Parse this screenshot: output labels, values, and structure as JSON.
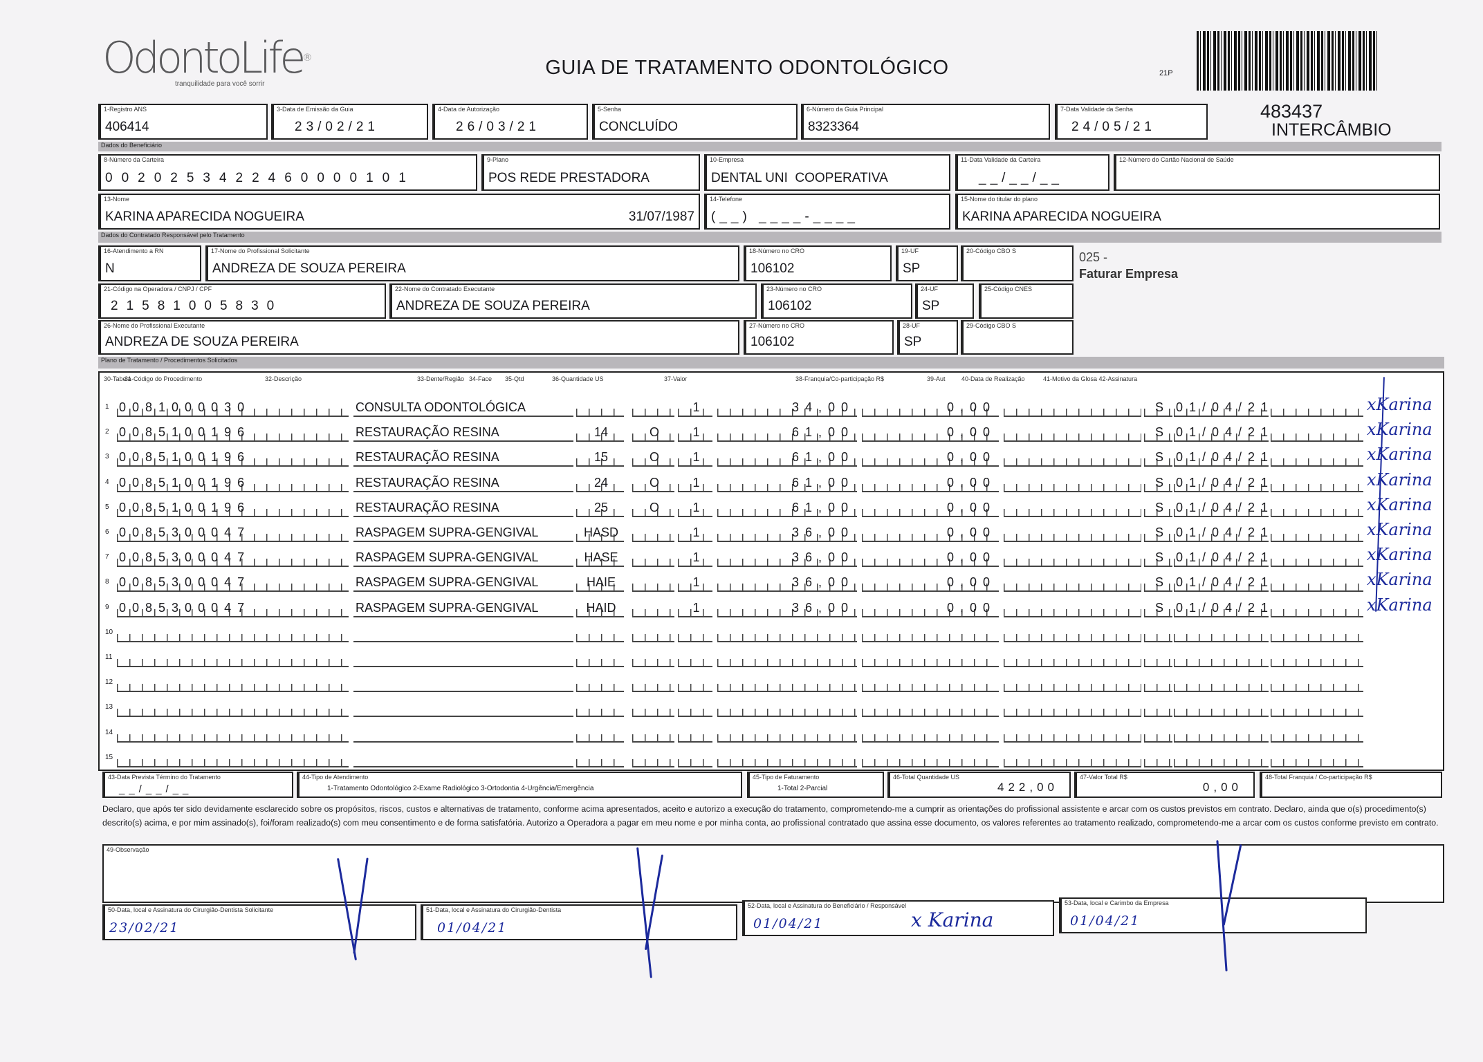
{
  "header": {
    "logo_text": "OdontoLife",
    "logo_tagline": "tranquilidade para você sorrir",
    "title": "GUIA DE TRATAMENTO ODONTOLÓGICO",
    "page_code": "21P",
    "guide_number": "483437",
    "guide_type": "INTERCÂMBIO"
  },
  "guide": {
    "registro_ans": {
      "label": "1-Registro ANS",
      "value": "406414"
    },
    "data_emissao": {
      "label": "3-Data de Emissão da Guia",
      "value": "23/02/21"
    },
    "data_autorizacao": {
      "label": "4-Data de Autorização",
      "value": "26/03/21"
    },
    "senha": {
      "label": "5-Senha",
      "value": "CONCLUÍDO"
    },
    "guia_principal": {
      "label": "6-Número da Guia Principal",
      "value": "8323364"
    },
    "validade_senha": {
      "label": "7-Data Validade da Senha",
      "value": "24/05/21"
    }
  },
  "sections": {
    "beneficiario": "Dados do Beneficiário",
    "contratado": "Dados do Contratado Responsável pelo Tratamento",
    "plano": "Plano de Tratamento / Procedimentos Solicitados"
  },
  "beneficiario": {
    "carteira": {
      "label": "8-Número da Carteira",
      "value": "0020253422460000101"
    },
    "plano": {
      "label": "9-Plano",
      "value": "POS REDE PRESTADORA"
    },
    "empresa": {
      "label": "10-Empresa",
      "value": "DENTAL UNI  COOPERATIVA"
    },
    "validade_carteira": {
      "label": "11-Data Validade da Carteira",
      "value": "__/__/__"
    },
    "cns": {
      "label": "12-Número do Cartão Nacional de Saúde",
      "value": ""
    },
    "nome": {
      "label": "13-Nome",
      "value": "KARINA APARECIDA NOGUEIRA"
    },
    "nascimento": "31/07/1987",
    "telefone": {
      "label": "14-Telefone",
      "value": "(__) ____-____"
    },
    "titular": {
      "label": "15-Nome do titular do plano",
      "value": "KARINA APARECIDA NOGUEIRA"
    }
  },
  "contratado": {
    "rn": {
      "label": "16-Atendimento a RN",
      "value": "N"
    },
    "solicitante": {
      "label": "17-Nome do Profissional Solicitante",
      "value": "ANDREZA DE SOUZA PEREIRA"
    },
    "cro_sol": {
      "label": "18-Número no CRO",
      "value": "106102"
    },
    "uf_sol": {
      "label": "19-UF",
      "value": "SP"
    },
    "cbo_sol": {
      "label": "20-Código CBO S",
      "value": ""
    },
    "codigo_operadora": {
      "label": "21-Código na Operadora / CNPJ / CPF",
      "value": "21581005830"
    },
    "contratado_exec": {
      "label": "22-Nome do Contratado Executante",
      "value": "ANDREZA DE SOUZA PEREIRA"
    },
    "cro_exec": {
      "label": "23-Número no CRO",
      "value": "106102"
    },
    "uf_exec": {
      "label": "24-UF",
      "value": "SP"
    },
    "cnes": {
      "label": "25-Código CNES",
      "value": ""
    },
    "prof_exec": {
      "label": "26-Nome do Profissional Executante",
      "value": "ANDREZA DE SOUZA PEREIRA"
    },
    "cro_prof": {
      "label": "27-Número no CRO",
      "value": "106102"
    },
    "uf_prof": {
      "label": "28-UF",
      "value": "SP"
    },
    "cbo_prof": {
      "label": "29-Código CBO S",
      "value": ""
    },
    "note_code": "025 -",
    "note_text": "Faturar Empresa"
  },
  "table": {
    "headers": [
      "30-Tabela",
      "31-Código do Procedimento",
      "32-Descrição",
      "33-Dente/Região",
      "34-Face",
      "35-Qtd",
      "36-Quantidade US",
      "37-Valor",
      "38-Franquia/Co-participação R$",
      "39-Aut",
      "40-Data de Realização",
      "41-Motivo da Glosa 42-Assinatura"
    ],
    "rows": [
      {
        "n": "1",
        "code": "0081000030",
        "desc": "CONSULTA ODONTOLÓGICA",
        "dente": "",
        "face": "",
        "qtd": "1",
        "us": "34,00",
        "valor": "0,00",
        "aut": "S",
        "data": "01/04/21",
        "sig": "xKarina"
      },
      {
        "n": "2",
        "code": "0085100196",
        "desc": "RESTAURAÇÃO RESINA",
        "dente": "14",
        "face": "O",
        "qtd": "1",
        "us": "61,00",
        "valor": "0,00",
        "aut": "S",
        "data": "01/04/21",
        "sig": "xKarina"
      },
      {
        "n": "3",
        "code": "0085100196",
        "desc": "RESTAURAÇÃO RESINA",
        "dente": "15",
        "face": "O",
        "qtd": "1",
        "us": "61,00",
        "valor": "0,00",
        "aut": "S",
        "data": "01/04/21",
        "sig": "xKarina"
      },
      {
        "n": "4",
        "code": "0085100196",
        "desc": "RESTAURAÇÃO RESINA",
        "dente": "24",
        "face": "O",
        "qtd": "1",
        "us": "61,00",
        "valor": "0,00",
        "aut": "S",
        "data": "01/04/21",
        "sig": "xKarina"
      },
      {
        "n": "5",
        "code": "0085100196",
        "desc": "RESTAURAÇÃO RESINA",
        "dente": "25",
        "face": "O",
        "qtd": "1",
        "us": "61,00",
        "valor": "0,00",
        "aut": "S",
        "data": "01/04/21",
        "sig": "xKarina"
      },
      {
        "n": "6",
        "code": "0085300047",
        "desc": "RASPAGEM SUPRA-GENGIVAL",
        "dente": "HASD",
        "face": "",
        "qtd": "1",
        "us": "36,00",
        "valor": "0,00",
        "aut": "S",
        "data": "01/04/21",
        "sig": "xKarina"
      },
      {
        "n": "7",
        "code": "0085300047",
        "desc": "RASPAGEM SUPRA-GENGIVAL",
        "dente": "HASE",
        "face": "",
        "qtd": "1",
        "us": "36,00",
        "valor": "0,00",
        "aut": "S",
        "data": "01/04/21",
        "sig": "xKarina"
      },
      {
        "n": "8",
        "code": "0085300047",
        "desc": "RASPAGEM SUPRA-GENGIVAL",
        "dente": "HAIE",
        "face": "",
        "qtd": "1",
        "us": "36,00",
        "valor": "0,00",
        "aut": "S",
        "data": "01/04/21",
        "sig": "xKarina"
      },
      {
        "n": "9",
        "code": "0085300047",
        "desc": "RASPAGEM SUPRA-GENGIVAL",
        "dente": "HAID",
        "face": "",
        "qtd": "1",
        "us": "36,00",
        "valor": "0,00",
        "aut": "S",
        "data": "01/04/21",
        "sig": "xKarina"
      },
      {
        "n": "10"
      },
      {
        "n": "11"
      },
      {
        "n": "12"
      },
      {
        "n": "13"
      },
      {
        "n": "14"
      },
      {
        "n": "15"
      }
    ]
  },
  "footer": {
    "previsao": {
      "label": "43-Data Prevista Término do Tratamento",
      "value": "__/__/__"
    },
    "tipo_atendimento": {
      "label": "44-Tipo de Atendimento",
      "options": "1-Tratamento Odontológico  2-Exame Radiológico  3-Ortodontia  4-Urgência/Emergência"
    },
    "tipo_faturamento": {
      "label": "45-Tipo de Faturamento",
      "options": "1-Total  2-Parcial"
    },
    "total_us": {
      "label": "46-Total Quantidade US",
      "value": "422,00"
    },
    "valor_total": {
      "label": "47-Valor Total R$",
      "value": "0,00"
    },
    "total_franquia": {
      "label": "48-Total Franquia / Co-participação R$",
      "value": ""
    },
    "declaration": "Declaro, que após ter sido devidamente esclarecido sobre os propósitos, riscos, custos e alternativas de tratamento, conforme acima apresentados, aceito e autorizo a execução do tratamento, comprometendo-me a cumprir as orientações do profissional assistente e arcar com os custos previstos em contrato. Declaro, ainda que o(s) procedimento(s) descrito(s) acima, e por mim assinado(s), foi/foram realizado(s) com meu consentimento e de forma satisfatória. Autorizo a Operadora a pagar em meu nome e por minha conta, ao profissional contratado que assina esse documento, os valores referentes ao tratamento realizado, comprometendo-me a arcar com os custos conforme previsto em contrato.",
    "observacao": {
      "label": "49-Observação",
      "value": ""
    },
    "sig_solicitante": {
      "label": "50-Data, local e Assinatura do Cirurgião-Dentista Solicitante",
      "value": "23/02/21"
    },
    "sig_dentista": {
      "label": "51-Data, local e Assinatura do Cirurgião-Dentista",
      "value": "01/04/21"
    },
    "sig_beneficiario": {
      "label": "52-Data, local e Assinatura do Beneficiário / Responsável",
      "value": "01/04/21",
      "signature": "x Karina"
    },
    "sig_empresa": {
      "label": "53-Data, local e Carimbo da Empresa",
      "value": "01/04/21"
    }
  },
  "colors": {
    "ink": "#1c2a9c",
    "section_bar": "#b9b7bb",
    "paper": "#f4f3f5"
  }
}
